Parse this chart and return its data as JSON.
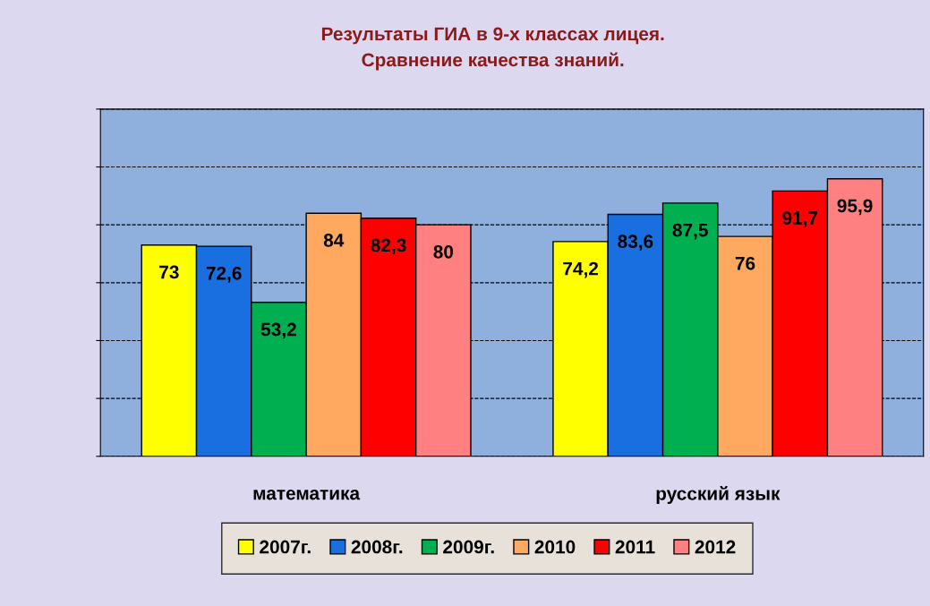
{
  "chart_data": {
    "type": "bar",
    "title": "Результаты ГИА в 9-х классах лицея.\nСравнение качества знаний.",
    "categories": [
      "математика",
      "русский язык"
    ],
    "series": [
      {
        "name": "2007г.",
        "color": "#ffff00",
        "values": [
          73,
          74.2
        ],
        "value_labels": [
          "73",
          "74,2"
        ]
      },
      {
        "name": "2008г.",
        "color": "#1a6fe0",
        "values": [
          72.6,
          83.6
        ],
        "value_labels": [
          "72,6",
          "83,6"
        ]
      },
      {
        "name": "2009г.",
        "color": "#00b050",
        "values": [
          53.2,
          87.5
        ],
        "value_labels": [
          "53,2",
          "87,5"
        ]
      },
      {
        "name": "2010",
        "color": "#ffa860",
        "values": [
          84,
          76
        ],
        "value_labels": [
          "84",
          "76"
        ]
      },
      {
        "name": "2011",
        "color": "#ff0000",
        "values": [
          82.3,
          91.7
        ],
        "value_labels": [
          "82,3",
          "91,7"
        ]
      },
      {
        "name": "2012",
        "color": "#ff8080",
        "values": [
          80,
          95.9
        ],
        "value_labels": [
          "80",
          "95,9"
        ]
      }
    ],
    "ylim": [
      0,
      120
    ],
    "yticks": [
      {
        "value": 0,
        "label": null
      },
      {
        "value": 20,
        "label": null
      },
      {
        "value": 40,
        "label": null
      },
      {
        "value": 60,
        "label": null
      },
      {
        "value": 80,
        "label": null
      },
      {
        "value": 100,
        "label": null
      },
      {
        "value": 120,
        "label": null
      }
    ],
    "tick_labels": "x",
    "grid": "y",
    "legend": "bottom"
  }
}
